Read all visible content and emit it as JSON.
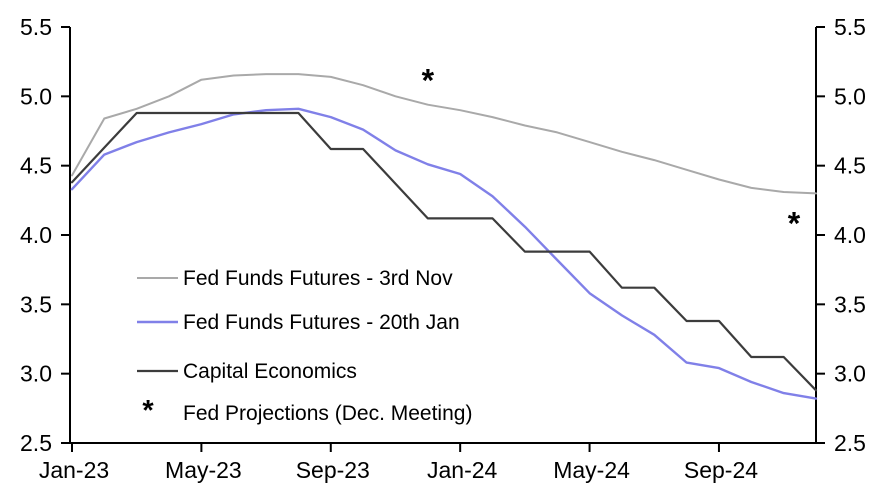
{
  "chart_data": {
    "type": "line",
    "title": "",
    "x": [
      "Jan-23",
      "Feb-23",
      "Mar-23",
      "Apr-23",
      "May-23",
      "Jun-23",
      "Jul-23",
      "Aug-23",
      "Sep-23",
      "Oct-23",
      "Nov-23",
      "Dec-23",
      "Jan-24",
      "Feb-24",
      "Mar-24",
      "Apr-24",
      "May-24",
      "Jun-24",
      "Jul-24",
      "Aug-24",
      "Sep-24",
      "Oct-24",
      "Nov-24",
      "Dec-24"
    ],
    "x_tick_labels": [
      "Jan-23",
      "May-23",
      "Sep-23",
      "Jan-24",
      "May-24",
      "Sep-24"
    ],
    "x_tick_indices": [
      0,
      4,
      8,
      12,
      16,
      20
    ],
    "y_tick_labels": [
      "5.5",
      "5.0",
      "4.5",
      "4.0",
      "3.5",
      "3.0",
      "2.5"
    ],
    "ylim": [
      2.5,
      5.5
    ],
    "dual_y_axis": true,
    "grid": false,
    "legend_position": "inside-bottom-left",
    "series": [
      {
        "name": "Fed Funds Futures - 3rd Nov",
        "color": "#A9A9A9",
        "values": [
          4.43,
          4.84,
          4.91,
          5.0,
          5.12,
          5.15,
          5.16,
          5.16,
          5.14,
          5.08,
          5.0,
          4.94,
          4.9,
          4.85,
          4.79,
          4.74,
          4.67,
          4.6,
          4.54,
          4.47,
          4.4,
          4.34,
          4.31,
          4.3
        ]
      },
      {
        "name": "Fed Funds Futures - 20th Jan",
        "color": "#8080E8",
        "values": [
          4.33,
          4.58,
          4.67,
          4.74,
          4.8,
          4.87,
          4.9,
          4.91,
          4.85,
          4.76,
          4.61,
          4.51,
          4.44,
          4.28,
          4.06,
          3.82,
          3.58,
          3.42,
          3.28,
          3.08,
          3.04,
          2.94,
          2.86,
          2.82
        ]
      },
      {
        "name": "Capital Economics",
        "color": "#3C3C3C",
        "values": [
          4.38,
          4.63,
          4.88,
          4.88,
          4.88,
          4.88,
          4.88,
          4.88,
          4.62,
          4.62,
          4.37,
          4.12,
          4.12,
          4.12,
          3.88,
          3.88,
          3.88,
          3.62,
          3.62,
          3.38,
          3.38,
          3.12,
          3.12,
          2.88
        ]
      }
    ],
    "markers": {
      "name": "Fed Projections (Dec. Meeting)",
      "symbol": "*",
      "color": "#000000",
      "points": [
        {
          "x": "Dec-23",
          "value": 5.15
        },
        {
          "x": "Dec-24",
          "value": 4.12
        }
      ]
    }
  }
}
